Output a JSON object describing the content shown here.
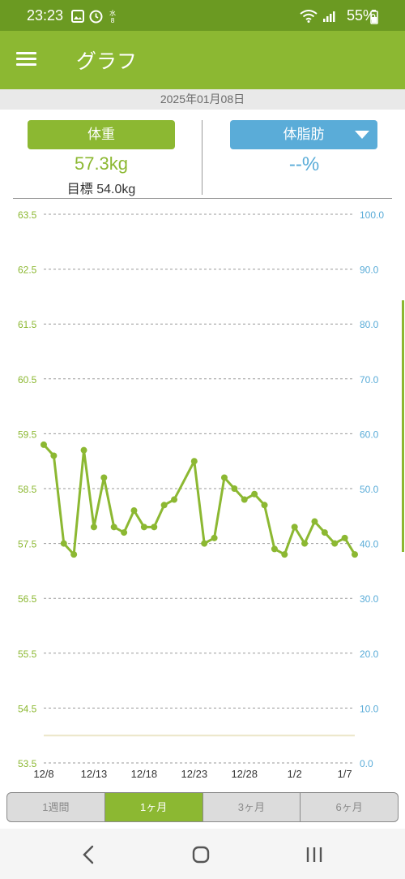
{
  "status_bar": {
    "time": "23:23",
    "battery": "55%"
  },
  "app_bar": {
    "title": "グラフ"
  },
  "date": "2025年01月08日",
  "weight": {
    "label": "体重",
    "value": "57.3kg",
    "goal_label": "目標",
    "goal_value": "54.0kg"
  },
  "body_fat": {
    "label": "体脂肪",
    "value": "--%"
  },
  "tabs": [
    {
      "label": "1週間",
      "active": false
    },
    {
      "label": "1ヶ月",
      "active": true
    },
    {
      "label": "3ヶ月",
      "active": false
    },
    {
      "label": "6ヶ月",
      "active": false
    }
  ],
  "colors": {
    "accent": "#8cb832",
    "status": "#6b9a22",
    "fat": "#5aacd8",
    "goal_line": "#ece6c8"
  },
  "chart_data": {
    "type": "line",
    "left_axis_ticks": [
      "63.5",
      "62.5",
      "61.5",
      "60.5",
      "59.5",
      "58.5",
      "57.5",
      "56.5",
      "55.5",
      "54.5",
      "53.5"
    ],
    "right_axis_ticks": [
      "100.0",
      "90.0",
      "80.0",
      "70.0",
      "60.0",
      "50.0",
      "40.0",
      "30.0",
      "20.0",
      "10.0",
      "0.0"
    ],
    "x_tick_labels": [
      "12/8",
      "12/13",
      "12/18",
      "12/23",
      "12/28",
      "1/2",
      "1/7"
    ],
    "y_left_range": [
      53.5,
      63.5
    ],
    "y_right_range": [
      0,
      100
    ],
    "goal": 54.0,
    "grid": true,
    "series": [
      {
        "points": [
          [
            "12/8",
            59.3
          ],
          [
            "12/9",
            59.1
          ],
          [
            "12/10",
            57.5
          ],
          [
            "12/11",
            57.3
          ],
          [
            "12/12",
            59.2
          ],
          [
            "12/13",
            57.8
          ],
          [
            "12/14",
            58.7
          ],
          [
            "12/15",
            57.8
          ],
          [
            "12/16",
            57.7
          ],
          [
            "12/17",
            58.1
          ],
          [
            "12/18",
            57.8
          ],
          [
            "12/19",
            57.8
          ],
          [
            "12/20",
            58.2
          ],
          [
            "12/21",
            58.3
          ],
          [
            "12/23",
            59.0
          ],
          [
            "12/24",
            57.5
          ],
          [
            "12/25",
            57.6
          ],
          [
            "12/26",
            58.7
          ],
          [
            "12/27",
            58.5
          ],
          [
            "12/28",
            58.3
          ],
          [
            "12/29",
            58.4
          ],
          [
            "12/30",
            58.2
          ],
          [
            "12/31",
            57.4
          ],
          [
            "1/1",
            57.3
          ],
          [
            "1/2",
            57.8
          ],
          [
            "1/3",
            57.5
          ],
          [
            "1/4",
            57.9
          ],
          [
            "1/5",
            57.7
          ],
          [
            "1/6",
            57.5
          ],
          [
            "1/7",
            57.6
          ],
          [
            "1/8",
            57.3
          ]
        ]
      }
    ]
  }
}
